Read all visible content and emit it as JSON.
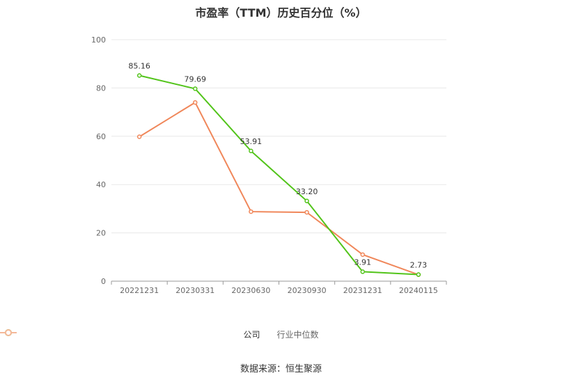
{
  "title": "市盈率（TTM）历史百分位（%）",
  "source": "数据来源：恒生聚源",
  "chart_data": {
    "type": "line",
    "categories": [
      "20221231",
      "20230331",
      "20230630",
      "20230930",
      "20231231",
      "20240115"
    ],
    "ylim": [
      0,
      100
    ],
    "yticks": [
      0,
      20,
      40,
      60,
      80,
      100
    ],
    "grid": true,
    "legend_position": "bottom",
    "series": [
      {
        "name": "公司",
        "color": "#52c41a",
        "values": [
          85.16,
          79.69,
          53.91,
          33.2,
          3.91,
          2.73
        ],
        "labels": [
          "85.16",
          "79.69",
          "53.91",
          "33.20",
          "3.91",
          "2.73"
        ]
      },
      {
        "name": "行业中位数",
        "color": "#f0875a",
        "values": [
          59.8,
          74.0,
          28.8,
          28.5,
          11.0,
          2.7
        ]
      }
    ]
  }
}
